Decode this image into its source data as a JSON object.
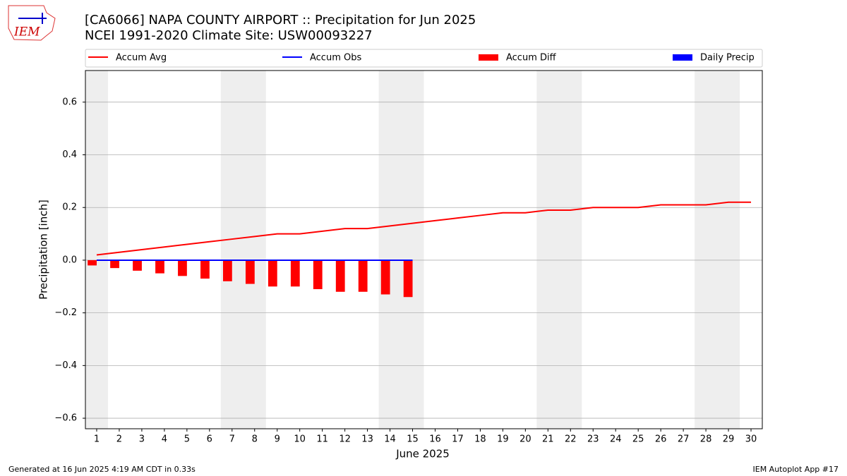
{
  "logo_text": "IEM",
  "chart_data": {
    "type": "line",
    "title": "[CA6066] NAPA COUNTY AIRPORT :: Precipitation for Jun 2025",
    "subtitle": "NCEI 1991-2020 Climate Site: USW00093227",
    "x_label": "June 2025",
    "y_label": "Precipitation [inch]",
    "footer_left": "Generated at 16 Jun 2025 4:19 AM CDT in 0.33s",
    "footer_right": "IEM Autoplot App #17",
    "x": [
      1,
      2,
      3,
      4,
      5,
      6,
      7,
      8,
      9,
      10,
      11,
      12,
      13,
      14,
      15,
      16,
      17,
      18,
      19,
      20,
      21,
      22,
      23,
      24,
      25,
      26,
      27,
      28,
      29,
      30
    ],
    "xlim": [
      0.5,
      30.5
    ],
    "xticks": [
      1,
      2,
      3,
      4,
      5,
      6,
      7,
      8,
      9,
      10,
      11,
      12,
      13,
      14,
      15,
      16,
      17,
      18,
      19,
      20,
      21,
      22,
      23,
      24,
      25,
      26,
      27,
      28,
      29,
      30
    ],
    "ylim": [
      -0.64,
      0.72
    ],
    "yticks": [
      {
        "value": -0.6,
        "label": "−0.6"
      },
      {
        "value": -0.4,
        "label": "−0.4"
      },
      {
        "value": -0.2,
        "label": "−0.2"
      },
      {
        "value": 0,
        "label": "0.0"
      },
      0.2,
      0.4,
      0.6
    ],
    "grid": true,
    "shaded_spans": [
      [
        0.5,
        1.5
      ],
      [
        6.5,
        8.5
      ],
      [
        13.5,
        15.5
      ],
      [
        20.5,
        22.5
      ],
      [
        27.5,
        29.5
      ]
    ],
    "series": [
      {
        "name": "Accum Avg",
        "kind": "line",
        "color": "#ff0000",
        "values": [
          0.02,
          0.03,
          0.04,
          0.05,
          0.06,
          0.07,
          0.08,
          0.09,
          0.1,
          0.1,
          0.11,
          0.12,
          0.12,
          0.13,
          0.14,
          0.15,
          0.16,
          0.17,
          0.18,
          0.18,
          0.19,
          0.19,
          0.2,
          0.2,
          0.2,
          0.21,
          0.21,
          0.21,
          0.22,
          0.22
        ]
      },
      {
        "name": "Accum Obs",
        "kind": "line",
        "color": "#0000ff",
        "values": [
          0,
          0,
          0,
          0,
          0,
          0,
          0,
          0,
          0,
          0,
          0,
          0,
          0,
          0,
          0,
          null,
          null,
          null,
          null,
          null,
          null,
          null,
          null,
          null,
          null,
          null,
          null,
          null,
          null,
          null
        ]
      },
      {
        "name": "Accum Diff",
        "kind": "bar",
        "color": "#ff0000",
        "values": [
          -0.02,
          -0.03,
          -0.04,
          -0.05,
          -0.06,
          -0.07,
          -0.08,
          -0.09,
          -0.1,
          -0.1,
          -0.11,
          -0.12,
          -0.12,
          -0.13,
          -0.14,
          null,
          null,
          null,
          null,
          null,
          null,
          null,
          null,
          null,
          null,
          null,
          null,
          null,
          null,
          null
        ]
      },
      {
        "name": "Daily Precip",
        "kind": "bar",
        "color": "#0000ff",
        "values": [
          0,
          0,
          0,
          0,
          0,
          0,
          0,
          0,
          0,
          0,
          0,
          0,
          0,
          0,
          0,
          null,
          null,
          null,
          null,
          null,
          null,
          null,
          null,
          null,
          null,
          null,
          null,
          null,
          null,
          null
        ]
      }
    ]
  }
}
